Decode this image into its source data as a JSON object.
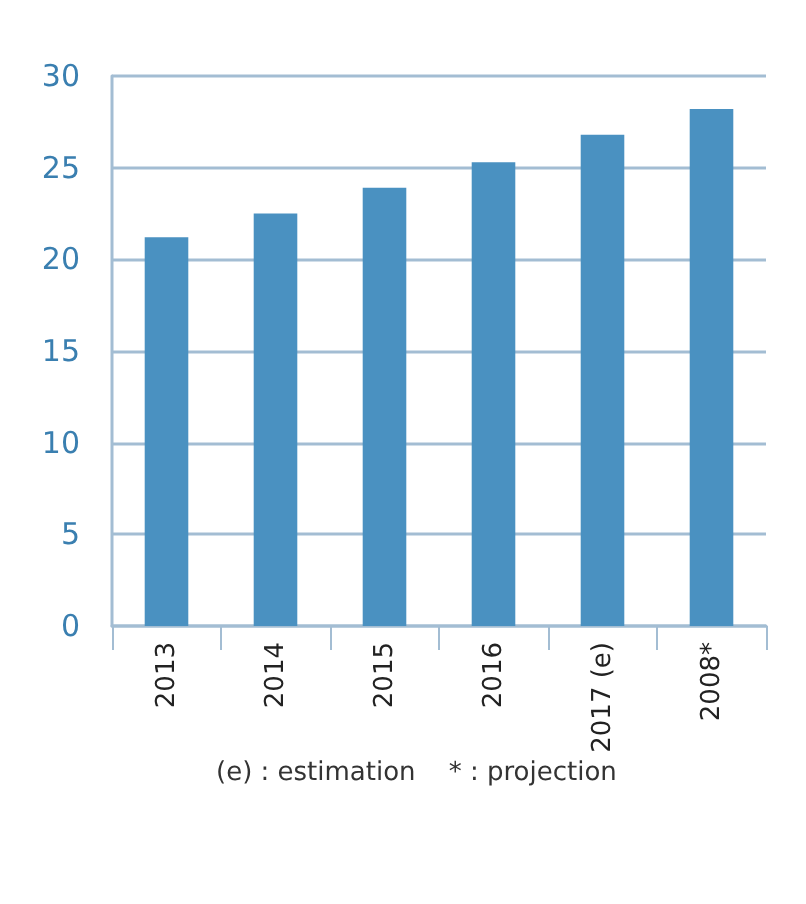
{
  "chart_data": {
    "type": "bar",
    "categories": [
      "2013",
      "2014",
      "2015",
      "2016",
      "2017 (e)",
      "2008*"
    ],
    "values": [
      21.2,
      22.5,
      23.9,
      25.3,
      26.8,
      28.2
    ],
    "color": "#4a91c1",
    "ylim": [
      0,
      30
    ],
    "yticks": [
      0,
      5,
      10,
      15,
      20,
      25,
      30
    ],
    "grid": "y",
    "annotations": [
      "(e) : estimation    * : projection"
    ]
  }
}
